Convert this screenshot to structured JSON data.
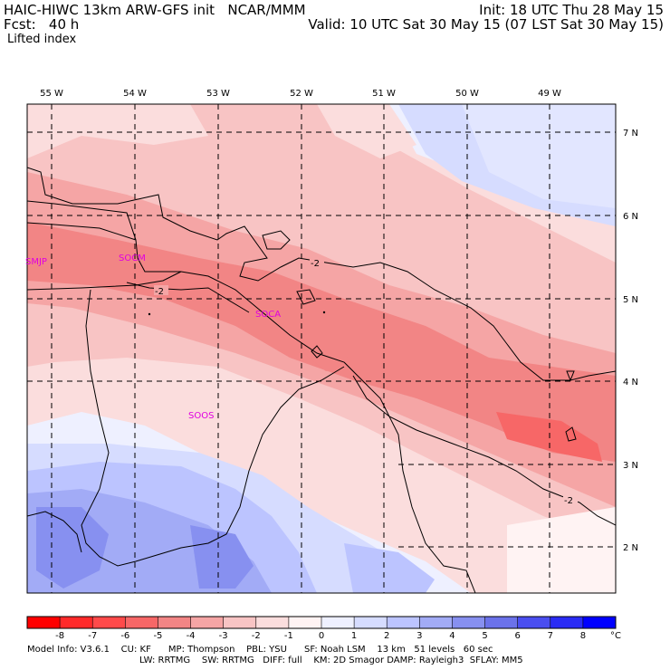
{
  "header": {
    "line1_left": "HAIC-HIWC 13km ARW-GFS init   NCAR/MMM",
    "line1_right": "Init: 18 UTC Thu 28 May 15",
    "line2_left": "Fcst:   40 h",
    "line2_right": "Valid: 10 UTC Sat 30 May 15 (07 LST Sat 30 May 15)",
    "field": "Lifted index"
  },
  "map": {
    "lon_labels": [
      "55 W",
      "54 W",
      "53 W",
      "52 W",
      "51 W",
      "50 W",
      "49 W"
    ],
    "lat_labels": [
      "7 N",
      "6 N",
      "5 N",
      "4 N",
      "3 N",
      "2 N"
    ],
    "stations": [
      "SMJP",
      "SOCM",
      "SOCA",
      "SOOS"
    ],
    "contour_labels": [
      "-2",
      "-2",
      "-2"
    ]
  },
  "colorbar": {
    "ticks": [
      "-8",
      "-7",
      "-6",
      "-5",
      "-4",
      "-3",
      "-2",
      "-1",
      "0",
      "1",
      "2",
      "3",
      "4",
      "5",
      "6",
      "7",
      "8"
    ],
    "unit": "°C",
    "colors": [
      "#ff0000",
      "#ff2a2a",
      "#ff4a4a",
      "#f76767",
      "#f28585",
      "#f5a5a5",
      "#f8c4c4",
      "#fbdddd",
      "#fff3f3",
      "#eef0ff",
      "#d6dcff",
      "#bcc4ff",
      "#a2abf6",
      "#8790f0",
      "#6b72ea",
      "#4a4ef0",
      "#2a2cf5",
      "#0000ff"
    ]
  },
  "footer": {
    "line1": "Model Info: V3.6.1    CU: KF      MP: Thompson    PBL: YSU      SF: Noah LSM    13 km   51 levels   60 sec",
    "line2": "LW: RRTMG    SW: RRTMG   DIFF: full    KM: 2D Smagor DAMP: Rayleigh3  SFLAY: MM5"
  }
}
